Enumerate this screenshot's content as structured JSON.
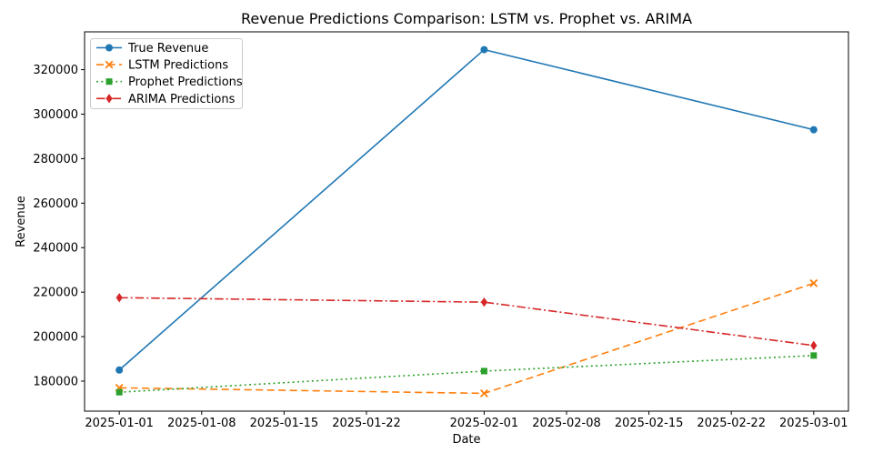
{
  "chart_data": {
    "type": "line",
    "title": "Revenue Predictions Comparison: LSTM vs. Prophet vs. ARIMA",
    "xlabel": "Date",
    "ylabel": "Revenue",
    "grid": false,
    "legend_position": "upper left",
    "x_dates": [
      "2025-01-01",
      "2025-02-01",
      "2025-03-01"
    ],
    "x_days": [
      0,
      31,
      59
    ],
    "series": [
      {
        "name": "True Revenue",
        "color": "#1f77b4",
        "linestyle": "solid",
        "marker": "circle",
        "values": [
          185000,
          329000,
          293000
        ]
      },
      {
        "name": "LSTM Predictions",
        "color": "#ff7f0e",
        "linestyle": "dashed",
        "marker": "x",
        "values": [
          177000,
          174500,
          224000
        ]
      },
      {
        "name": "Prophet Predictions",
        "color": "#2ca02c",
        "linestyle": "dotted",
        "marker": "square",
        "values": [
          175000,
          184500,
          191500
        ]
      },
      {
        "name": "ARIMA Predictions",
        "color": "#d62728",
        "linestyle": "dashdot",
        "marker": "diamond",
        "values": [
          217500,
          215500,
          196000
        ]
      }
    ],
    "x_ticks": [
      {
        "day": 0,
        "label": "2025-01-01"
      },
      {
        "day": 7,
        "label": "2025-01-08"
      },
      {
        "day": 14,
        "label": "2025-01-15"
      },
      {
        "day": 21,
        "label": "2025-01-22"
      },
      {
        "day": 31,
        "label": "2025-02-01"
      },
      {
        "day": 38,
        "label": "2025-02-08"
      },
      {
        "day": 45,
        "label": "2025-02-15"
      },
      {
        "day": 52,
        "label": "2025-02-22"
      },
      {
        "day": 59,
        "label": "2025-03-01"
      }
    ],
    "y_ticks": [
      180000,
      200000,
      220000,
      240000,
      260000,
      280000,
      300000,
      320000
    ],
    "xlim_days": [
      -2.95,
      61.95
    ],
    "ylim": [
      166500,
      337000
    ],
    "colors": {
      "spine": "#000000",
      "legend_border": "#cccccc",
      "legend_bg": "#ffffff"
    }
  }
}
